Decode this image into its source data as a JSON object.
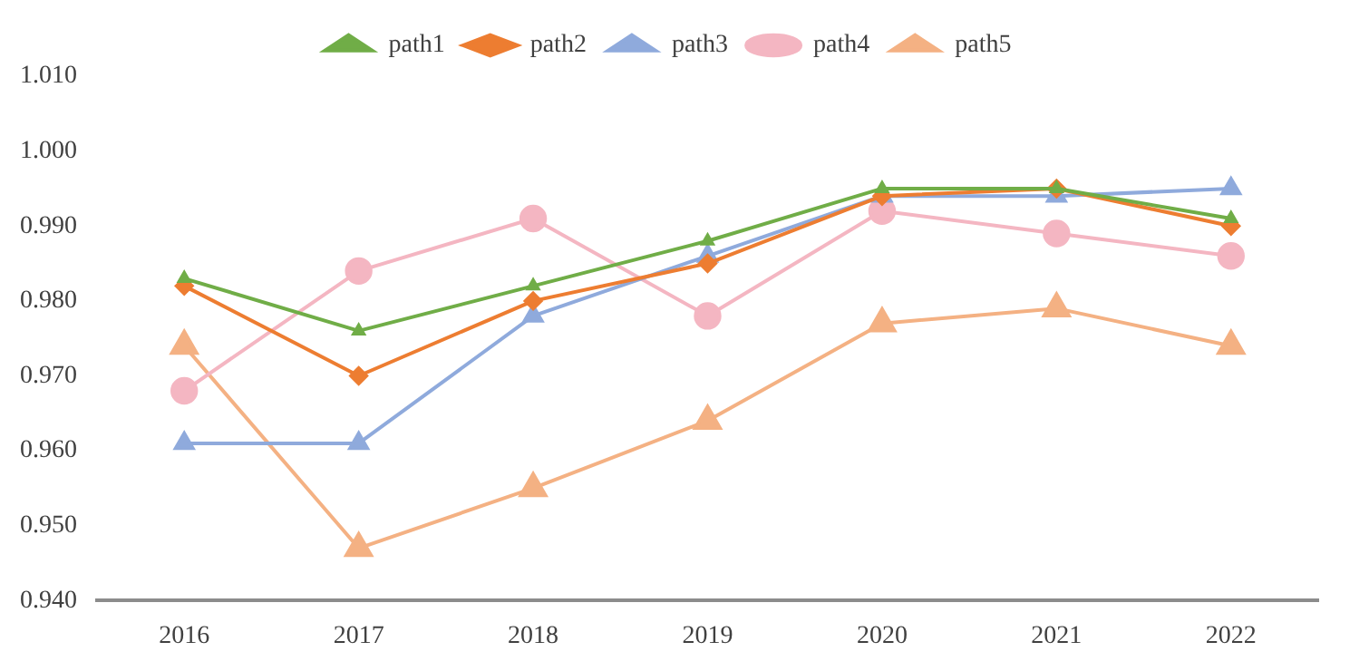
{
  "chart_data": {
    "type": "line",
    "categories": [
      "2016",
      "2017",
      "2018",
      "2019",
      "2020",
      "2021",
      "2022"
    ],
    "series": [
      {
        "name": "path1",
        "color": "#70ad47",
        "marker": "triangle",
        "values": [
          0.983,
          0.976,
          0.982,
          0.988,
          0.995,
          0.995,
          0.991
        ]
      },
      {
        "name": "path2",
        "color": "#ed7d31",
        "marker": "diamond",
        "values": [
          0.982,
          0.97,
          0.98,
          0.985,
          0.994,
          0.995,
          0.99
        ]
      },
      {
        "name": "path3",
        "color": "#8faadc",
        "marker": "triangle",
        "values": [
          0.961,
          0.961,
          0.978,
          0.986,
          0.994,
          0.994,
          0.995
        ]
      },
      {
        "name": "path4",
        "color": "#f4b6c2",
        "marker": "circle",
        "values": [
          0.968,
          0.984,
          0.991,
          0.978,
          0.992,
          0.989,
          0.986
        ]
      },
      {
        "name": "path5",
        "color": "#f4b183",
        "marker": "triangle",
        "values": [
          0.974,
          0.947,
          0.955,
          0.964,
          0.977,
          0.979,
          0.974
        ]
      }
    ],
    "ylim": [
      0.94,
      1.01
    ],
    "yticks": [
      {
        "value": 0.94,
        "label": "0.940"
      },
      {
        "value": 0.95,
        "label": "0.950"
      },
      {
        "value": 0.96,
        "label": "0.960"
      },
      {
        "value": 0.97,
        "label": "0.970"
      },
      {
        "value": 0.98,
        "label": "0.980"
      },
      {
        "value": 0.99,
        "label": "0.990"
      },
      {
        "value": 1.0,
        "label": "1.000"
      },
      {
        "value": 1.01,
        "label": "1.010"
      }
    ],
    "grid": false,
    "legend": "top"
  }
}
